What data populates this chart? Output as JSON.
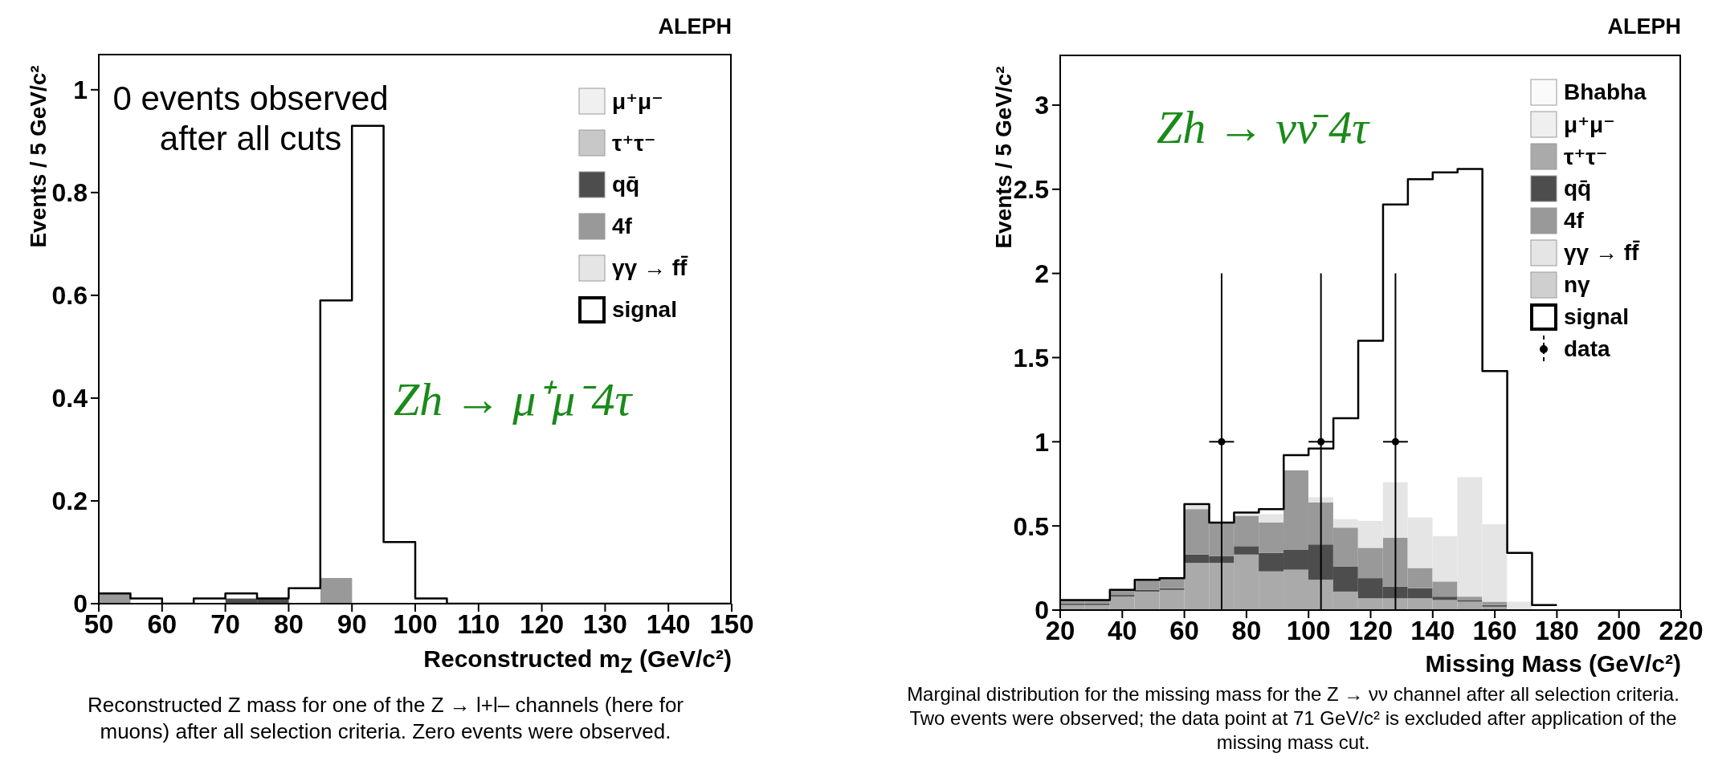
{
  "chart_data": [
    {
      "type": "bar",
      "stacked": true,
      "legend": "top right",
      "xlabel": "Reconstructed m$_{Z}$ (GeV/c²)",
      "ylabel": "Events / 5 GeV/c²",
      "xlim": [
        50,
        150
      ],
      "xticks": [
        50,
        60,
        70,
        80,
        90,
        100,
        110,
        120,
        130,
        140,
        150
      ],
      "ylim": [
        0,
        1.07
      ],
      "yticks": [
        0,
        0.2,
        0.4,
        0.6,
        0.8,
        1
      ],
      "x": [
        52.5,
        57.5,
        62.5,
        67.5,
        72.5,
        77.5,
        82.5,
        87.5,
        92.5,
        97.5,
        102.5,
        107.5,
        112.5,
        117.5,
        122.5,
        127.5,
        132.5,
        137.5,
        142.5,
        147.5
      ],
      "series": [
        {
          "name": "μ⁺μ⁻",
          "color": "#f0f0f0",
          "values": [
            null,
            null,
            null,
            null,
            null,
            null,
            null,
            null,
            null,
            null,
            null,
            null,
            null,
            null,
            null,
            null,
            null,
            null,
            null,
            null
          ]
        },
        {
          "name": "τ⁺τ⁻",
          "color": "#c8c8c8",
          "values": [
            null,
            null,
            null,
            null,
            null,
            null,
            null,
            null,
            null,
            null,
            null,
            null,
            null,
            null,
            null,
            null,
            null,
            null,
            null,
            null
          ]
        },
        {
          "name": "qq̄",
          "color": "#4d4d4d",
          "values": [
            0,
            0,
            0,
            0,
            0.01,
            0.01,
            0,
            0,
            0,
            0,
            0,
            0,
            0,
            0,
            0,
            0,
            0,
            0,
            0,
            0
          ]
        },
        {
          "name": "4f",
          "color": "#999999",
          "values": [
            0.02,
            0,
            0,
            0,
            0,
            0,
            0,
            0.05,
            0,
            0,
            0,
            0,
            0,
            0,
            0,
            0,
            0,
            0,
            0,
            0
          ]
        },
        {
          "name": "γγ → ff̄",
          "color": "#e5e5e5",
          "values": [
            null,
            null,
            null,
            null,
            null,
            null,
            null,
            null,
            null,
            null,
            null,
            null,
            null,
            null,
            null,
            null,
            null,
            null,
            null,
            null
          ]
        },
        {
          "name": "signal",
          "type": "step",
          "color": "#000000",
          "x": [
            50,
            55,
            60,
            65,
            70,
            75,
            80,
            85,
            90,
            95,
            100,
            105,
            110,
            115,
            120,
            125,
            130,
            135,
            140,
            145,
            150
          ],
          "values": [
            0.02,
            0.01,
            0,
            0.01,
            0.02,
            0.01,
            0.03,
            0.59,
            0.93,
            0.12,
            0.01,
            0,
            0,
            0,
            0,
            0,
            0,
            0,
            0,
            0,
            0
          ]
        }
      ],
      "annotations": [
        "ALEPH",
        "0 events observed after all cuts",
        "Zh → μ⁺μ⁻4τ",
        "Reconstructed Z mass for one of the Z → l+l– channels (here for muons) after all selection criteria.  Zero events were observed."
      ]
    },
    {
      "type": "bar",
      "stacked": true,
      "legend": "top right",
      "xlabel": "Missing Mass (GeV/c²)",
      "ylabel": "Events / 5 GeV/c²",
      "xlim": [
        20,
        220
      ],
      "xticks": [
        20,
        40,
        60,
        80,
        100,
        120,
        140,
        160,
        180,
        200,
        220
      ],
      "ylim": [
        0,
        3.3
      ],
      "yticks": [
        0,
        0.5,
        1,
        1.5,
        2,
        2.5,
        3
      ],
      "x": [
        24,
        32,
        40,
        48,
        56,
        64,
        72,
        80,
        88,
        96,
        104,
        112,
        120,
        128,
        136,
        144,
        152,
        160,
        168,
        176
      ],
      "series": [
        {
          "name": "Bhabha",
          "color": "#fafafa",
          "values": [
            null,
            null,
            null,
            null,
            null,
            null,
            null,
            null,
            null,
            null,
            null,
            null,
            null,
            null,
            null,
            null,
            null,
            null,
            null,
            null
          ]
        },
        {
          "name": "μ⁺μ⁻",
          "color": "#efefef",
          "values": [
            null,
            null,
            null,
            null,
            null,
            null,
            null,
            null,
            null,
            null,
            null,
            null,
            null,
            null,
            null,
            null,
            null,
            null,
            null,
            null
          ]
        },
        {
          "name": "τ⁺τ⁻",
          "color": "#aaaaaa",
          "values": [
            0.03,
            0.03,
            0.08,
            0.11,
            0.12,
            0.28,
            0.28,
            0.33,
            0.23,
            0.24,
            0.18,
            0.11,
            0.07,
            0.07,
            0.07,
            0.06,
            0.05,
            0.02,
            0,
            0
          ]
        },
        {
          "name": "qq̄",
          "color": "#4d4d4d",
          "values": [
            0.01,
            0.01,
            0.01,
            0.01,
            0.01,
            0.05,
            0.04,
            0.05,
            0.11,
            0.12,
            0.21,
            0.15,
            0.12,
            0.07,
            0.06,
            0.02,
            0.01,
            0.01,
            0,
            0
          ]
        },
        {
          "name": "4f",
          "color": "#999999",
          "values": [
            0.02,
            0.02,
            0.03,
            0.06,
            0.06,
            0.27,
            0.2,
            0.18,
            0.18,
            0.47,
            0.25,
            0.23,
            0.18,
            0.29,
            0.12,
            0.09,
            0.02,
            0.02,
            null,
            0
          ]
        },
        {
          "name": "γγ → ff̄",
          "color": "#e5e5e5",
          "values": [
            0,
            0,
            0,
            0,
            0,
            0.02,
            0,
            0.01,
            0.05,
            0,
            0.03,
            0.05,
            0.16,
            0.33,
            0.3,
            0.27,
            0.71,
            0.46,
            0.05,
            0
          ]
        },
        {
          "name": "nγ",
          "color": "#cfcfcf",
          "values": [
            null,
            null,
            null,
            null,
            null,
            null,
            null,
            null,
            null,
            null,
            null,
            null,
            null,
            null,
            null,
            null,
            null,
            null,
            null,
            null
          ]
        },
        {
          "name": "signal",
          "type": "step",
          "color": "#000000",
          "x": [
            20,
            28,
            36,
            44,
            52,
            60,
            68,
            76,
            84,
            92,
            100,
            108,
            116,
            124,
            132,
            140,
            148,
            156,
            164,
            172,
            180
          ],
          "values": [
            0.06,
            0.06,
            0.12,
            0.18,
            0.19,
            0.63,
            0.52,
            0.58,
            0.6,
            0.92,
            0.96,
            1.14,
            1.6,
            2.41,
            2.56,
            2.6,
            2.62,
            1.42,
            0.34,
            0.03,
            0.03
          ]
        },
        {
          "name": "data",
          "type": "scatter",
          "color": "#000000",
          "marker": "circle",
          "x": [
            72,
            104,
            128
          ],
          "values": [
            1,
            1,
            1
          ],
          "errors": [
            1,
            1,
            1
          ],
          "xerrors": [
            4,
            4,
            4
          ]
        }
      ],
      "annotations": [
        "ALEPH",
        "Zh → νν̄ 4τ",
        "Marginal distribution for the missing mass for the Z → νν channel after all selection criteria.  Two events were observed; the data point at 71 GeV/c² is excluded after application of the missing mass cut."
      ]
    }
  ]
}
